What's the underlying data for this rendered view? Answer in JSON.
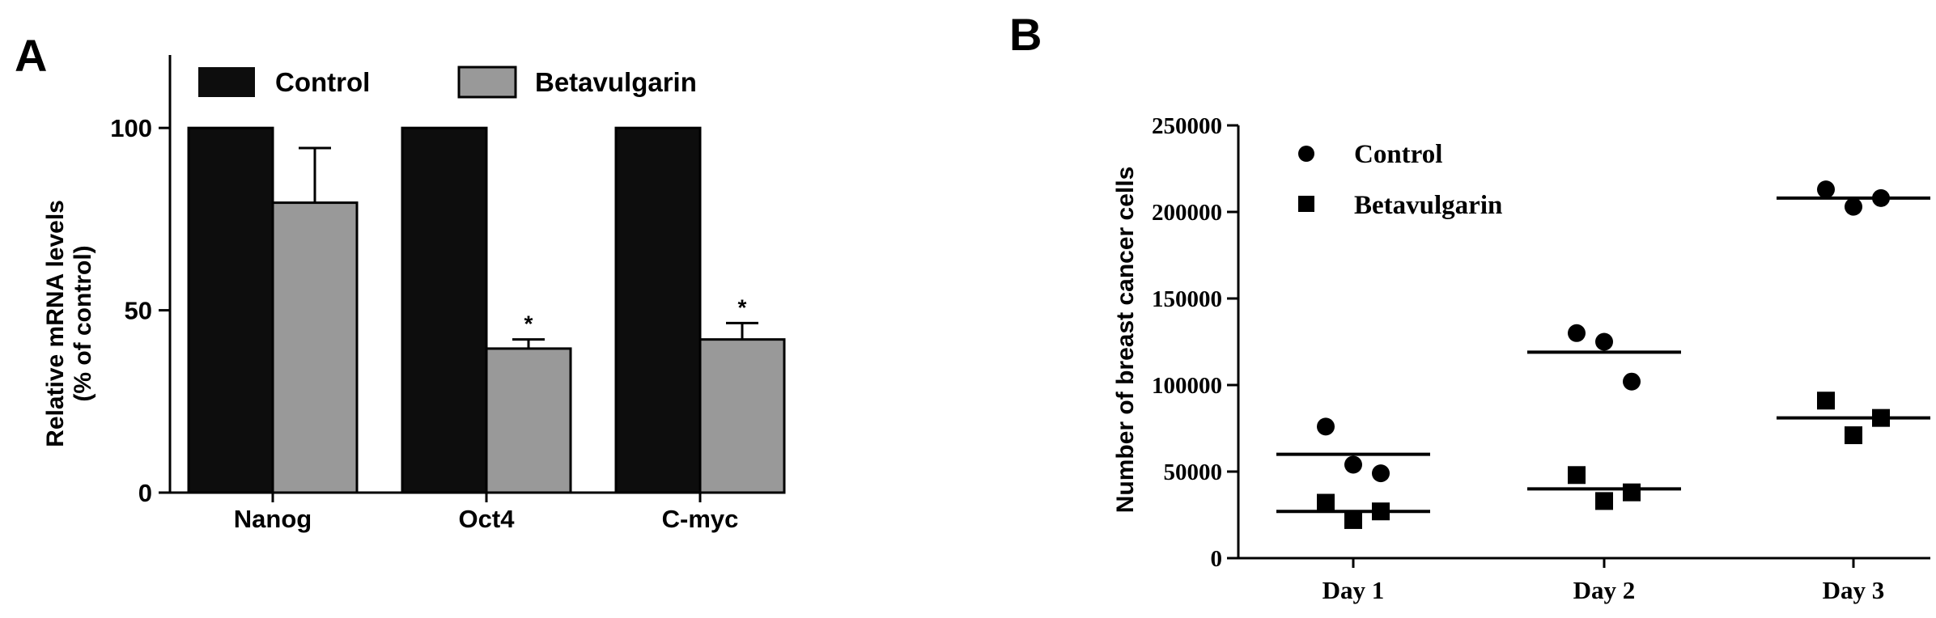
{
  "panel_labels": {
    "a": "A",
    "b": "B"
  },
  "colors": {
    "control": "#0d0d0d",
    "betavulgarin": "#999999",
    "axis": "#000000"
  },
  "chart_data": [
    {
      "type": "bar",
      "ylabel_line1": "Relative mRNA levels",
      "ylabel_line2": "(% of control)",
      "categories": [
        "Nanog",
        "Oct4",
        "C-myc"
      ],
      "ylim": [
        0,
        120
      ],
      "yticks": [
        0,
        50,
        100
      ],
      "ytick_labels": [
        "0",
        "50",
        "100"
      ],
      "legend_position": "top",
      "series": [
        {
          "name": "Control",
          "values": [
            100,
            100,
            100
          ],
          "errors": [
            0,
            0,
            0
          ]
        },
        {
          "name": "Betavulgarin",
          "values": [
            79.5,
            39.5,
            42
          ],
          "errors": [
            15,
            2.5,
            4.5
          ]
        }
      ],
      "significance": [
        "",
        "*",
        "*"
      ]
    },
    {
      "type": "scatter",
      "ylabel": "Number of breast cancer cells",
      "categories": [
        "Day 1",
        "Day 2",
        "Day 3"
      ],
      "ylim": [
        0,
        250000
      ],
      "yticks": [
        0,
        50000,
        100000,
        150000,
        200000,
        250000
      ],
      "ytick_labels": [
        "0",
        "50000",
        "100000",
        "150000",
        "200000",
        "250000"
      ],
      "legend_position": "top-left",
      "series": [
        {
          "name": "Control",
          "marker": "circle",
          "points": [
            {
              "day": "Day 1",
              "values": [
                76000,
                54000,
                49000
              ]
            },
            {
              "day": "Day 2",
              "values": [
                130000,
                125000,
                102000
              ]
            },
            {
              "day": "Day 3",
              "values": [
                213000,
                203000,
                208000
              ]
            }
          ],
          "means": [
            60000,
            119000,
            208000
          ]
        },
        {
          "name": "Betavulgarin",
          "marker": "square",
          "points": [
            {
              "day": "Day 1",
              "values": [
                32000,
                22000,
                27000
              ]
            },
            {
              "day": "Day 2",
              "values": [
                48000,
                33000,
                38000
              ]
            },
            {
              "day": "Day 3",
              "values": [
                91000,
                71000,
                81000
              ]
            }
          ],
          "means": [
            27000,
            40000,
            81000
          ]
        }
      ]
    }
  ]
}
